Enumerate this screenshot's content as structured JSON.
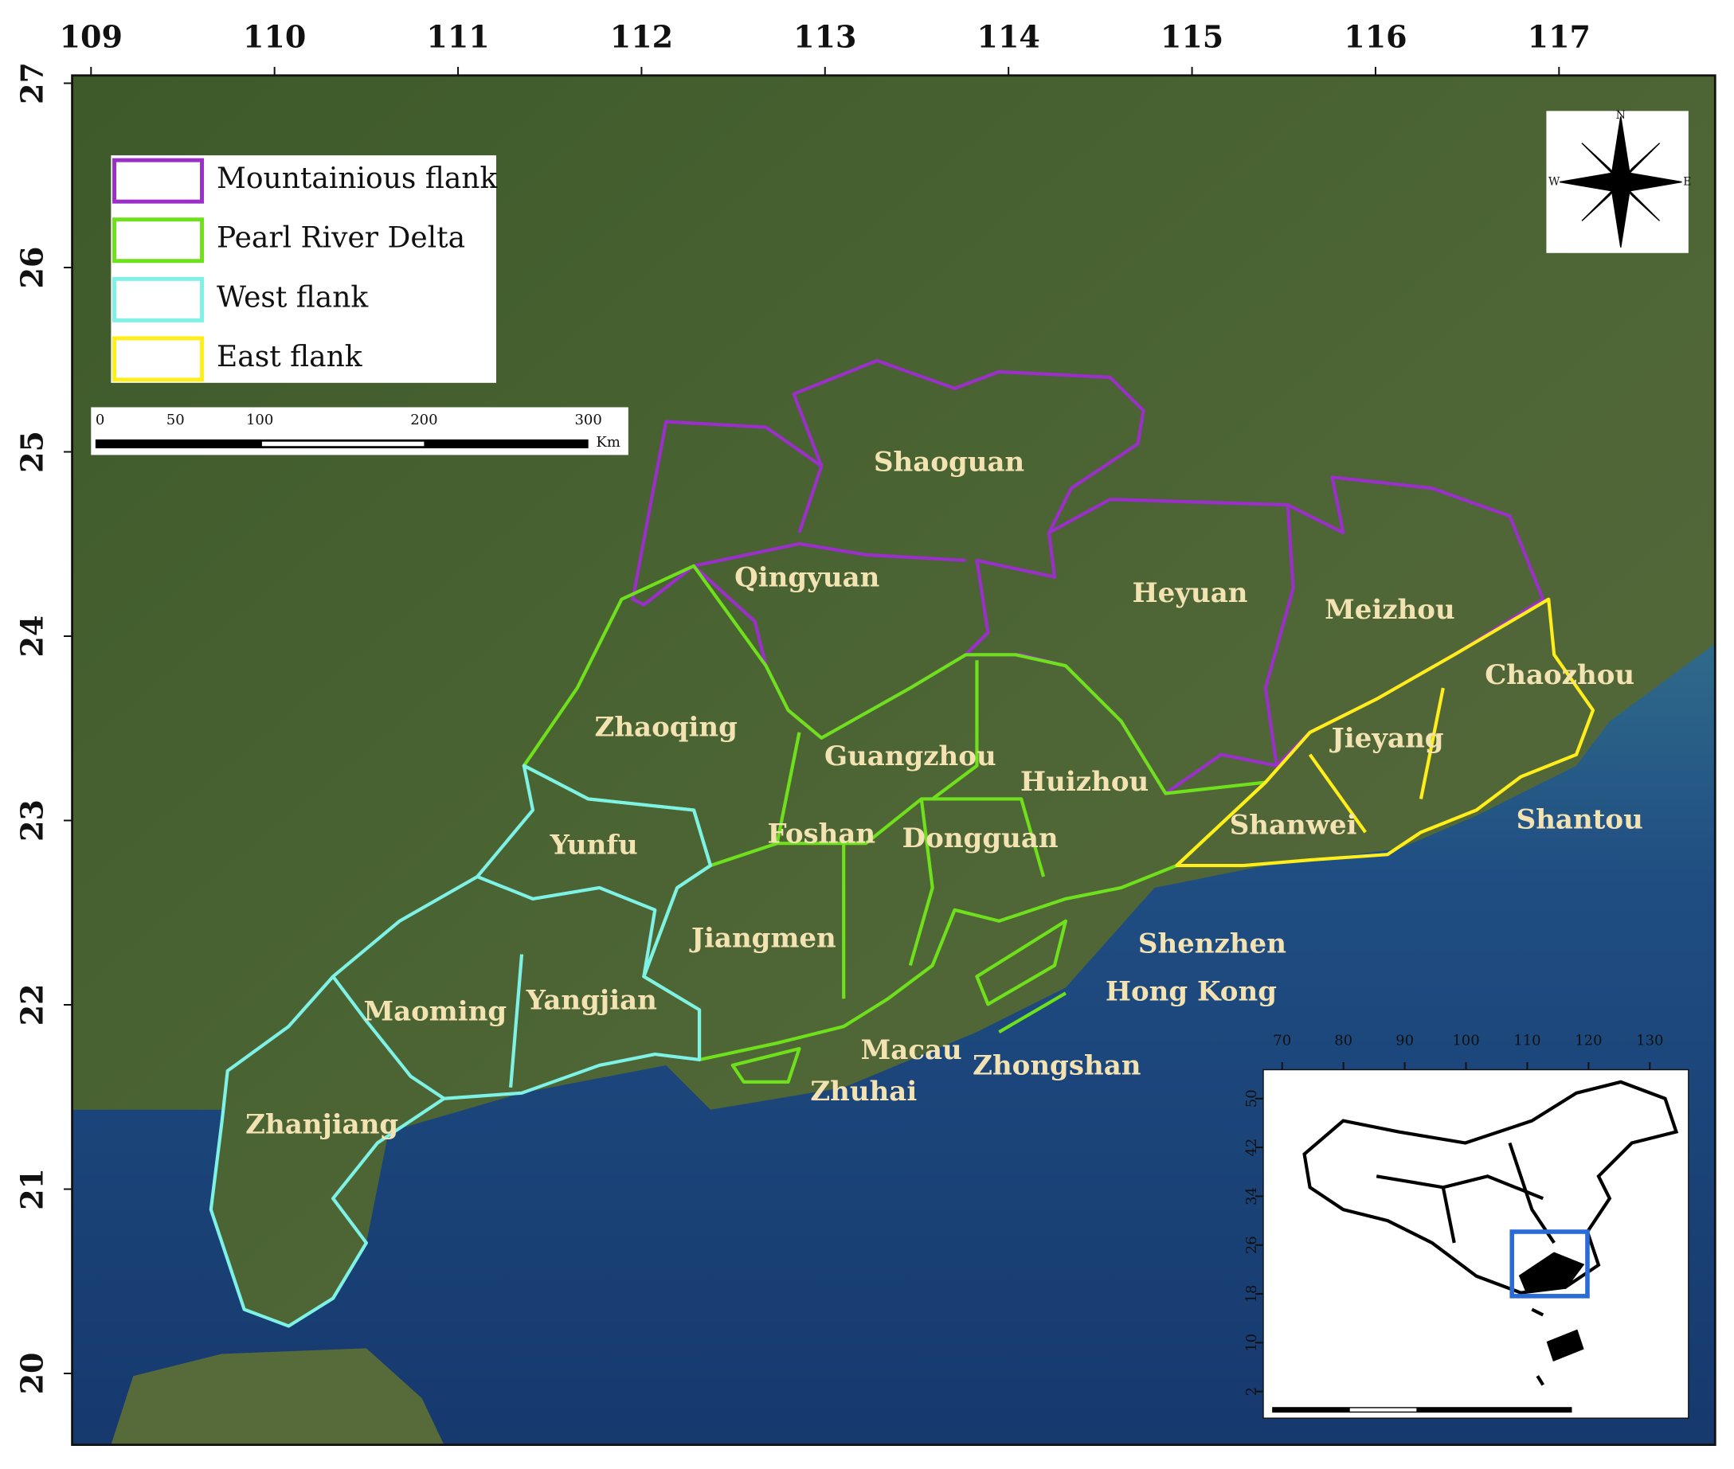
{
  "longitude_ticks": [
    109,
    110,
    111,
    112,
    113,
    114,
    115,
    116,
    117
  ],
  "latitude_ticks": [
    27,
    26,
    25,
    24,
    23,
    22,
    21,
    20
  ],
  "legend": [
    {
      "label": "Mountainious flank",
      "color": "#9b2fc9"
    },
    {
      "label": "Pearl River Delta",
      "color": "#6fe01c"
    },
    {
      "label": "West flank",
      "color": "#7ff2e6"
    },
    {
      "label": "East flank",
      "color": "#ffee1a"
    }
  ],
  "scale_bar": {
    "labels": [
      0,
      50,
      100,
      200,
      300
    ],
    "unit": "Km"
  },
  "compass": [
    "N",
    "W",
    "E"
  ],
  "cities": [
    "Shaoguan",
    "Qingyuan",
    "Heyuan",
    "Meizhou",
    "Chaozhou",
    "Zhaoqing",
    "Guangzhou",
    "Jieyang",
    "Huizhou",
    "Shantou",
    "Shanwei",
    "Yunfu",
    "Foshan",
    "Dongguan",
    "Jiangmen",
    "Shenzhen",
    "Hong Kong",
    "Maoming",
    "Yangjian",
    "Macau",
    "Zhongshan",
    "Zhuhai",
    "Zhanjiang"
  ],
  "inset": {
    "x_ticks": [
      70,
      80,
      90,
      100,
      110,
      120,
      130
    ],
    "y_ticks": [
      50,
      42,
      34,
      26,
      18,
      10,
      2
    ]
  }
}
